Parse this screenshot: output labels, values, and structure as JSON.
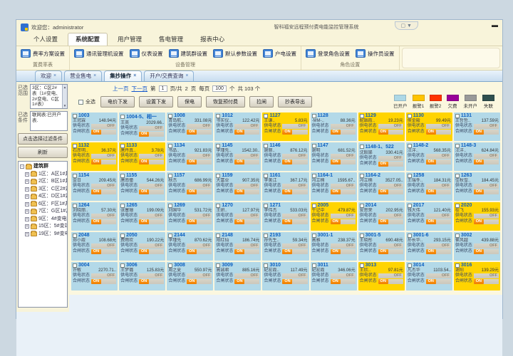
{
  "icons": {
    "pill": "▢ ▼",
    "minimize": "▬",
    "scroll_up": "▲",
    "scroll_down": "▼",
    "expand": "+",
    "collapse": "-"
  },
  "titlebar": {
    "welcome": "欢迎您：administrator",
    "app_title": "智科福安远程预付费电能监控管理系统"
  },
  "menu_tabs": [
    {
      "label": "个人设置"
    },
    {
      "label": "系统配置",
      "cls": "active"
    },
    {
      "label": "用户管理"
    },
    {
      "label": "售电管理"
    },
    {
      "label": "报表中心"
    }
  ],
  "ribbon": {
    "groups": [
      {
        "label": "置费率表",
        "buttons": [
          {
            "label": "费率方案设置"
          }
        ]
      },
      {
        "label": "设备管理",
        "buttons": [
          {
            "label": "通讯管理机设置"
          },
          {
            "label": "仪表设置"
          },
          {
            "label": "建筑群设置"
          },
          {
            "label": "默认参数设置"
          },
          {
            "label": "户电设置"
          }
        ]
      },
      {
        "label": "角色设置",
        "buttons": [
          {
            "label": "登录角色设置"
          },
          {
            "label": "操作员设置"
          }
        ]
      }
    ]
  },
  "doc_tabs": [
    {
      "label": "欢迎",
      "close": "×"
    },
    {
      "label": "营业售电",
      "close": "×"
    },
    {
      "label": "集抄操作",
      "close": "×",
      "cls": "active"
    },
    {
      "label": "开户/交费查询",
      "close": "×"
    }
  ],
  "sidebar": {
    "range_label": "已选范围",
    "range_text": "3区：C区2#表（1#变电、2#变电、C区1#表）",
    "cond_label": "已选条件",
    "cond_text": "联网表:已开户表.",
    "filter_button": "点击选择过滤条件",
    "refresh_button": "刷新",
    "tree_root": "建筑群",
    "tree_items": [
      {
        "label": "1区：A区1#井"
      },
      {
        "label": "2区：B区1#井/B区1"
      },
      {
        "label": "3区：C区2#井（1#"
      },
      {
        "label": "4区：D区1#井（D区"
      },
      {
        "label": "6区：F区1#井（F区"
      },
      {
        "label": "7区：G区1#井"
      },
      {
        "label": "9区：4#变电井（4#"
      },
      {
        "label": "15区：5#变站（3#"
      },
      {
        "label": "19区：9#变电站（2"
      }
    ]
  },
  "pagination": {
    "prev": "上一页",
    "next": "下一页",
    "page_label": "第",
    "page_value": "1",
    "page_suffix": "页/共",
    "page_total": "2",
    "page_total_suffix": "页",
    "per_label": "每页",
    "per_value": "100",
    "per_unit": "个",
    "total": "共 103 个"
  },
  "toolbar": {
    "select_all": "全选",
    "buttons": [
      {
        "label": "电价下发"
      },
      {
        "label": "设置下发"
      },
      {
        "label": "保电"
      },
      {
        "label": "恢复预付费"
      },
      {
        "label": "拉闸"
      },
      {
        "label": "抄表导出"
      }
    ]
  },
  "legend": [
    {
      "label": "已开户",
      "color": "#ADD8E6"
    },
    {
      "label": "报警1",
      "color": "#FFC400"
    },
    {
      "label": "报警2",
      "color": "#FF3300"
    },
    {
      "label": "欠费",
      "color": "#990099"
    },
    {
      "label": "未开户",
      "color": "#999999"
    },
    {
      "label": "失联",
      "color": "#2F4F4F"
    }
  ],
  "card_labels": {
    "power": "供电状态",
    "switch": "合闸状态",
    "off": "OFF",
    "on": "ON"
  },
  "cards": [
    {
      "num": "1003",
      "name": "王冠霖",
      "amt": "148.94元"
    },
    {
      "num": "1004-5、相一",
      "name": "王英",
      "amt": "2029.66.."
    },
    {
      "num": "1008",
      "name": "青岛航..",
      "amt": "331.08元"
    },
    {
      "num": "1012",
      "name": "书实仪..",
      "amt": "122.42元"
    },
    {
      "num": "1127",
      "name": "王谦..",
      "amt": "5.83元",
      "cls": "y"
    },
    {
      "num": "1128",
      "name": "-MM-..",
      "amt": "88.36元"
    },
    {
      "num": "1129",
      "name": "配姻霞..",
      "amt": "19.23元",
      "cls": "y"
    },
    {
      "num": "1130",
      "name": "侯金殿",
      "amt": "99.49元",
      "cls": "y"
    },
    {
      "num": "1131",
      "name": "王哲哲..",
      "amt": "137.59元"
    },
    {
      "num": "1132",
      "name": "石彦明..",
      "amt": "36.37元",
      "cls": "y"
    },
    {
      "num": "1133",
      "name": "唐丹真..",
      "amt": "3.78元",
      "cls": "y"
    },
    {
      "num": "1134",
      "name": "书品..",
      "amt": "921.83元"
    },
    {
      "num": "1145",
      "name": "李瑾先..",
      "amt": "1542.30.."
    },
    {
      "num": "1146",
      "name": "谢丽..",
      "amt": "876.12元"
    },
    {
      "num": "1147",
      "name": "谢明",
      "amt": "681.52元"
    },
    {
      "num": "1148-1、522",
      "name": "沈毅娣",
      "amt": "330.41元"
    },
    {
      "num": "1148-2",
      "name": "汪洋..",
      "amt": "568.35元"
    },
    {
      "num": "1148-3",
      "name": "汪洋..",
      "amt": "624.84元"
    },
    {
      "num": "1154",
      "name": "金日",
      "amt": "209.45元"
    },
    {
      "num": "1155",
      "name": "唐南僮",
      "amt": "544.26元"
    },
    {
      "num": "1157",
      "name": "秋杰",
      "amt": "686.99元"
    },
    {
      "num": "1159",
      "name": "大富业",
      "amt": "907.35元"
    },
    {
      "num": "1161",
      "name": "李美江",
      "amt": "367.17元"
    },
    {
      "num": "1164-1",
      "name": "冯立楠",
      "amt": "1595.67.."
    },
    {
      "num": "1164-2",
      "name": "冯立楠",
      "amt": "3527.05.."
    },
    {
      "num": "1258",
      "name": "王瑞冬..",
      "amt": "184.31元"
    },
    {
      "num": "1263",
      "name": "佳秋雪..",
      "amt": "184.45元"
    },
    {
      "num": "1264",
      "name": "刘晓丽..",
      "amt": "57.30元"
    },
    {
      "num": "1265",
      "name": "张塞珊",
      "amt": "199.09元"
    },
    {
      "num": "1269",
      "name": "刘国华",
      "amt": "531.72元"
    },
    {
      "num": "1270",
      "name": "王妍..",
      "amt": "127.97元"
    },
    {
      "num": "1271",
      "name": "李伟杰",
      "amt": "533.03元"
    },
    {
      "num": "2005",
      "name": "牛记中",
      "amt": "479.87元",
      "cls": "y"
    },
    {
      "num": "2014",
      "name": "安思荣",
      "amt": "202.95元"
    },
    {
      "num": "2017",
      "name": "钱大伟",
      "amt": "121.40元"
    },
    {
      "num": "2020",
      "name": "桂飞",
      "amt": "155.93元",
      "cls": "y"
    },
    {
      "num": "2048",
      "name": "郑小霞",
      "amt": "108.68元"
    },
    {
      "num": "2050",
      "name": "费雨欢",
      "amt": "190.22元"
    },
    {
      "num": "2144",
      "name": "李瑾先",
      "amt": "870.62元"
    },
    {
      "num": "2148",
      "name": "阳红仙",
      "amt": "186.74元"
    },
    {
      "num": "2193",
      "name": "孙先生..",
      "amt": "59.34元"
    },
    {
      "num": "3001-1",
      "name": "高雅",
      "amt": "238.37元"
    },
    {
      "num": "3001-5",
      "name": "王晓彤",
      "amt": "690.48元"
    },
    {
      "num": "3001-6",
      "name": "孙长华..",
      "amt": "293.15元"
    },
    {
      "num": "3002",
      "name": "崔风越",
      "amt": "439.88元"
    },
    {
      "num": "3004",
      "name": "许敏",
      "amt": "2270.71.."
    },
    {
      "num": "3006",
      "name": "王梦璐",
      "amt": "125.83元"
    },
    {
      "num": "3008",
      "name": "周之夏",
      "amt": "550.97元"
    },
    {
      "num": "3009",
      "name": "高诚君",
      "amt": "885.16元"
    },
    {
      "num": "3010",
      "name": "纪宏霞..",
      "amt": "117.49元"
    },
    {
      "num": "3011",
      "name": "纪宏霞",
      "amt": "346.06元"
    },
    {
      "num": "3013",
      "name": "王欣..",
      "amt": "97.81元",
      "cls": "y"
    },
    {
      "num": "3014",
      "name": "凡杰华",
      "amt": "1103.54.."
    },
    {
      "num": "3016",
      "name": "谢阳",
      "amt": "139.29元",
      "cls": "y"
    }
  ]
}
